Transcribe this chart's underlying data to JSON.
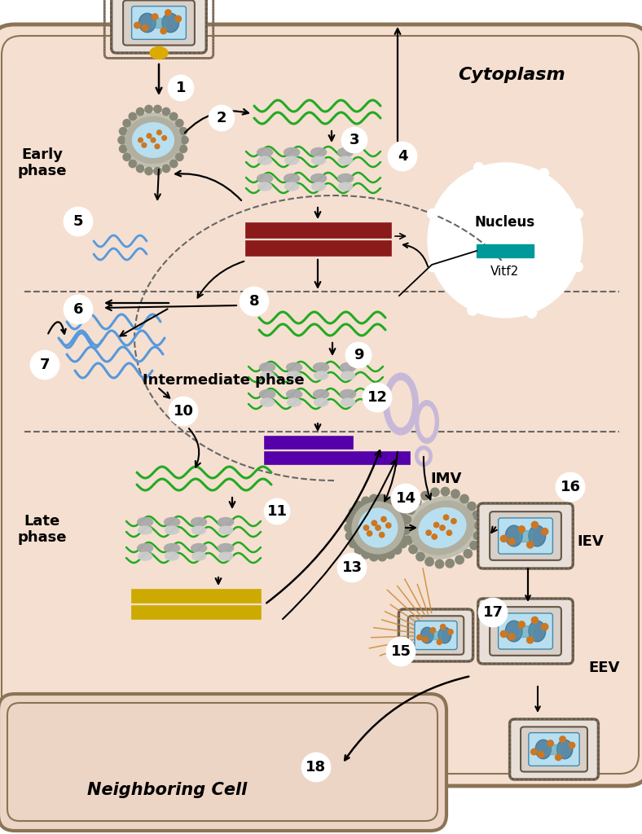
{
  "bg_color": "#f5dfd0",
  "cell_bg": "#f5dfd0",
  "border_color": "#8B7355",
  "nucleus_color": "#ffffff",
  "nucleus_border": "#8B7355",
  "cytoplasm_label": "Cytoplasm",
  "nucleus_label": "Nucleus",
  "vitf2_label": "Vitf2",
  "early_phase_label": "Early\nphase",
  "intermediate_phase_label": "Intermediate phase",
  "late_phase_label": "Late\nphase",
  "neighboring_cell_label": "Neighboring Cell",
  "imv_label": "IMV",
  "iev_label": "IEV",
  "eev_label": "EEV",
  "green_wave_color": "#22aa22",
  "blue_wave_color": "#5599dd",
  "dark_red_bar_color": "#8B1A1A",
  "purple_bar_color": "#5500aa",
  "gold_bar_color": "#ccaa00",
  "teal_bar_color": "#009999",
  "step_circle_color": "#ffffff",
  "step_circle_border": "#333333",
  "arrow_color": "#111111",
  "dashed_line_color": "#666666",
  "ribo_color1": "#aaaaaa",
  "ribo_color2": "#cccccc",
  "figure_width": 7.88,
  "figure_height": 10.24
}
